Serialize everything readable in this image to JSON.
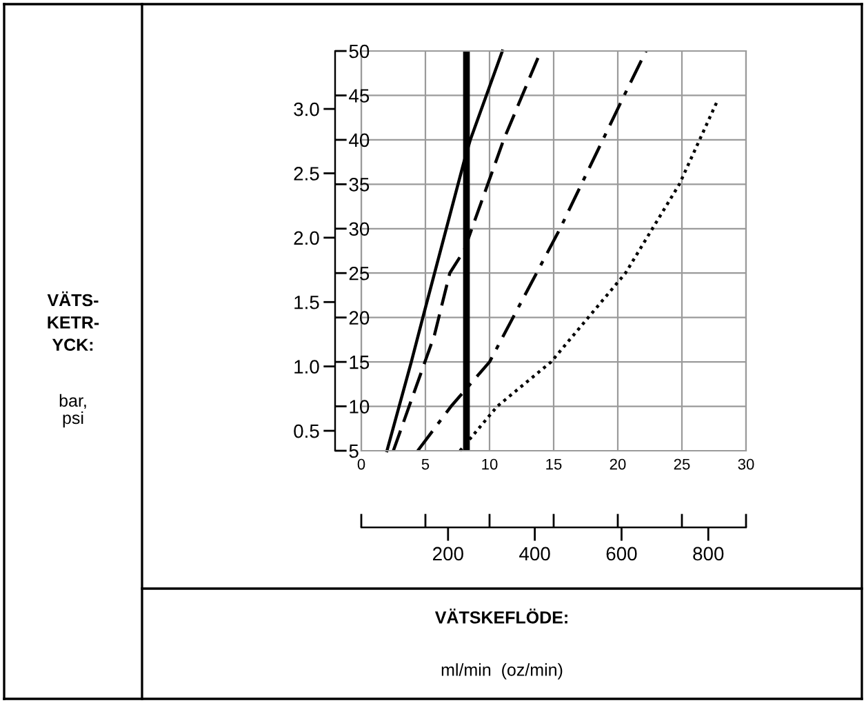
{
  "chart_data": {
    "type": "line",
    "xlabel": "VÄTSKEFLÖDE:",
    "annotations": [
      "ml/min  (oz/min)",
      "VÄTS-\nKETR-\nYCK:",
      "bar,\npsi"
    ],
    "series": [
      {
        "color": "#000000",
        "line_style": "solid",
        "x": [
          2.0,
          3.9,
          4.8,
          8.0,
          8.5,
          11.0
        ],
        "values": [
          5,
          15,
          20,
          37.5,
          40,
          50
        ]
      },
      {
        "color": "#000000",
        "line_style": "dashed",
        "x": [
          2.5,
          5.7,
          6.9,
          8.0,
          11.1,
          14.0
        ],
        "values": [
          5,
          18,
          25,
          27.5,
          40,
          50
        ]
      },
      {
        "color": "#000000",
        "line_style": "dashdot",
        "x": [
          4.4,
          7.0,
          10.0,
          15.5,
          20.5,
          22.2
        ],
        "values": [
          5,
          10,
          15,
          30,
          45,
          50
        ]
      },
      {
        "color": "#000000",
        "line_style": "dotted",
        "x": [
          7.7,
          10.6,
          14.8,
          17.7,
          20.6,
          24.8,
          27.8
        ],
        "values": [
          5,
          10,
          15,
          20,
          25,
          35,
          44.5
        ]
      }
    ],
    "ref_lines": [
      {
        "axis": "x",
        "value": 8.2,
        "color": "#000000",
        "line_style": "solid"
      }
    ],
    "xlim": [
      0,
      30
    ],
    "xticks": [
      0,
      5,
      10,
      15,
      20,
      25,
      30
    ],
    "ylim": [
      5,
      50
    ],
    "yticks": [
      5,
      10,
      15,
      20,
      25,
      30,
      35,
      40,
      45,
      50
    ],
    "y2lim": [
      0.345,
      3.45
    ],
    "y2ticks": [
      0.5,
      {
        "value": 1,
        "label": "1.0"
      },
      1.5,
      {
        "value": 2,
        "label": "2.0"
      },
      2.5,
      {
        "value": 3,
        "label": "3.0"
      }
    ],
    "x2lim": [
      0,
      887
    ],
    "x2ticks": [
      200,
      400,
      600,
      800
    ],
    "grid": true,
    "marker": "none",
    "legend": false
  }
}
